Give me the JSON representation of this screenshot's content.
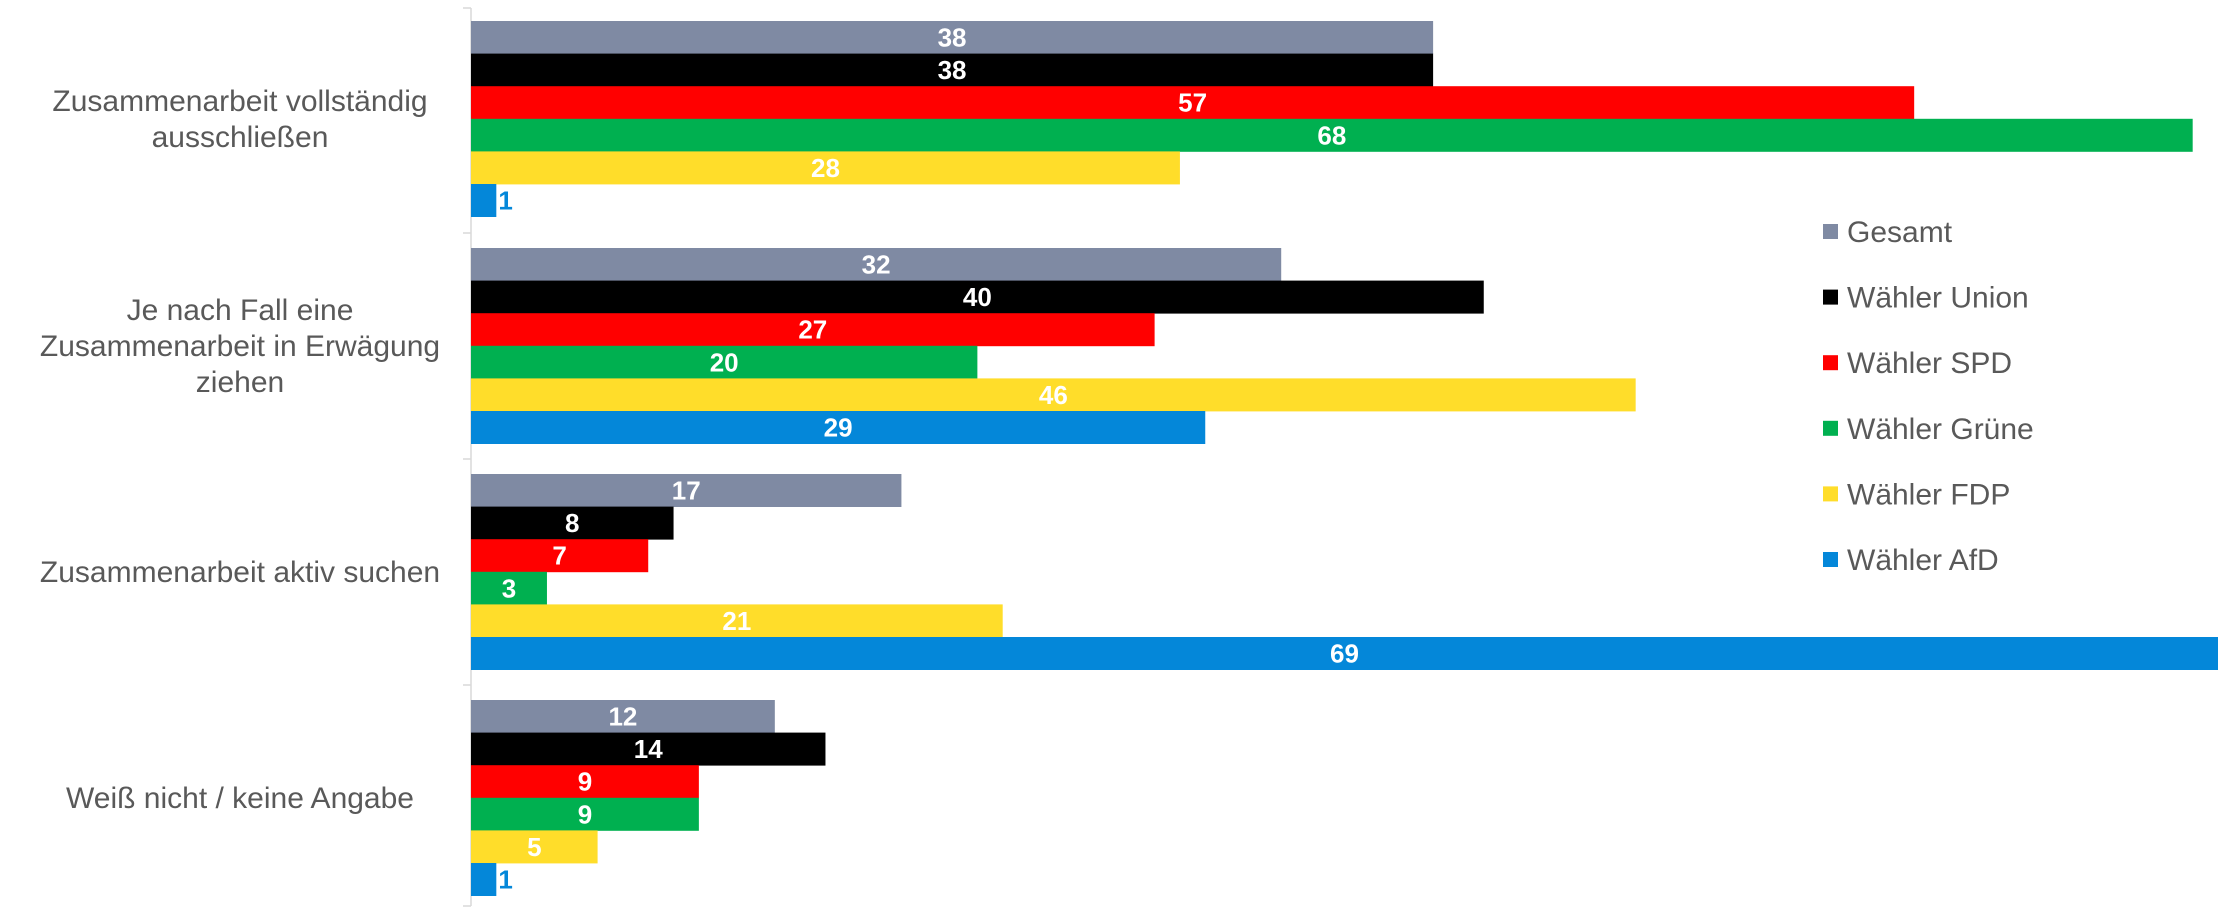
{
  "chart_data": {
    "type": "bar",
    "orientation": "horizontal",
    "categories": [
      [
        "Zusammenarbeit vollständig",
        "ausschließen"
      ],
      [
        "Je nach Fall eine",
        "Zusammenarbeit in Erwägung",
        "ziehen"
      ],
      [
        "Zusammenarbeit aktiv suchen"
      ],
      [
        "Weiß nicht / keine Angabe"
      ]
    ],
    "series": [
      {
        "name": "Gesamt",
        "color": "#7f8aa3",
        "label_color": "#ffffff",
        "values": [
          38,
          32,
          17,
          12
        ]
      },
      {
        "name": "Wähler Union",
        "color": "#000000",
        "label_color": "#ffffff",
        "values": [
          38,
          40,
          8,
          14
        ]
      },
      {
        "name": "Wähler SPD",
        "color": "#ff0000",
        "label_color": "#ffffff",
        "values": [
          57,
          27,
          7,
          9
        ]
      },
      {
        "name": "Wähler Grüne",
        "color": "#00b050",
        "label_color": "#ffffff",
        "values": [
          68,
          20,
          3,
          9
        ]
      },
      {
        "name": "Wähler FDP",
        "color": "#ffdd2a",
        "label_color": "#ffffff",
        "values": [
          28,
          46,
          21,
          5
        ]
      },
      {
        "name": "Wähler AfD",
        "color": "#0487d9",
        "label_color": "#ffffff",
        "values": [
          1,
          29,
          69,
          1
        ]
      }
    ],
    "xlim": [
      0,
      69
    ],
    "grid": false,
    "legend": "right",
    "title": "",
    "xlabel": "",
    "ylabel": ""
  }
}
